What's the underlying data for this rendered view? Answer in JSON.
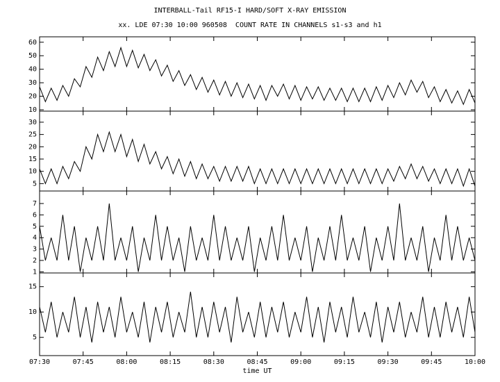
{
  "title": "INTERBALL-Tail RF15-I HARD/SOFT X-RAY EMISSION",
  "subtitle": "xx. LDE 07:30 10:00 960508  COUNT RATE IN CHANNELS s1-s3 and h1",
  "chart_data": [
    {
      "type": "line",
      "color": "#000000",
      "values": [
        27,
        16,
        26,
        17,
        28,
        20,
        33,
        27,
        42,
        34,
        49,
        39,
        53,
        42,
        56,
        42,
        54,
        41,
        51,
        39,
        47,
        35,
        43,
        31,
        39,
        28,
        36,
        25,
        34,
        23,
        32,
        21,
        31,
        20,
        30,
        19,
        29,
        18,
        28,
        17,
        28,
        20,
        29,
        18,
        28,
        17,
        27,
        18,
        27,
        17,
        26,
        17,
        26,
        16,
        26,
        16,
        26,
        16,
        27,
        17,
        28,
        19,
        30,
        21,
        32,
        23,
        31,
        19,
        27,
        16,
        25,
        15,
        24,
        14,
        25,
        15
      ],
      "ylim": [
        9,
        64
      ],
      "yticks": [
        10,
        20,
        30,
        40,
        50,
        60
      ]
    },
    {
      "type": "line",
      "color": "#000000",
      "values": [
        11,
        5,
        11,
        5,
        12,
        7,
        14,
        10,
        20,
        15,
        25,
        18,
        26,
        18,
        25,
        16,
        23,
        14,
        21,
        13,
        18,
        11,
        16,
        9,
        15,
        8,
        14,
        7,
        13,
        7,
        12,
        6,
        12,
        6,
        12,
        6,
        12,
        5,
        11,
        5,
        11,
        5,
        11,
        5,
        11,
        5,
        11,
        5,
        11,
        5,
        11,
        5,
        11,
        5,
        11,
        5,
        11,
        5,
        11,
        5,
        11,
        6,
        12,
        7,
        13,
        7,
        12,
        6,
        11,
        5,
        11,
        5,
        11,
        4,
        11,
        4
      ],
      "ylim": [
        2,
        34.5
      ],
      "yticks": [
        5,
        10,
        15,
        20,
        25,
        30
      ]
    },
    {
      "type": "line",
      "color": "#000000",
      "values": [
        5,
        2,
        4,
        2,
        6,
        2,
        5,
        1,
        4,
        2,
        5,
        2,
        7,
        2,
        4,
        2,
        5,
        1,
        4,
        2,
        6,
        2,
        5,
        2,
        4,
        1,
        5,
        2,
        4,
        2,
        6,
        2,
        5,
        2,
        4,
        2,
        5,
        1,
        4,
        2,
        5,
        2,
        6,
        2,
        4,
        2,
        5,
        1,
        4,
        2,
        5,
        2,
        6,
        2,
        4,
        2,
        5,
        1,
        4,
        2,
        5,
        2,
        7,
        2,
        4,
        2,
        5,
        1,
        4,
        2,
        6,
        2,
        5,
        2,
        4,
        2
      ],
      "ylim": [
        0.9,
        8.1
      ],
      "yticks": [
        1,
        2,
        3,
        4,
        5,
        6,
        7
      ]
    },
    {
      "type": "line",
      "color": "#000000",
      "values": [
        11,
        6,
        12,
        5,
        10,
        6,
        13,
        5,
        11,
        4,
        12,
        6,
        11,
        5,
        13,
        6,
        10,
        5,
        12,
        4,
        11,
        6,
        12,
        5,
        10,
        6,
        14,
        5,
        11,
        5,
        12,
        6,
        11,
        4,
        13,
        6,
        10,
        5,
        12,
        5,
        11,
        6,
        12,
        5,
        10,
        6,
        13,
        5,
        11,
        4,
        12,
        6,
        11,
        5,
        13,
        6,
        10,
        5,
        12,
        4,
        11,
        6,
        12,
        5,
        10,
        6,
        13,
        5,
        11,
        5,
        12,
        6,
        11,
        5,
        13,
        6
      ],
      "ylim": [
        1.4,
        17.7
      ],
      "yticks": [
        5,
        10,
        15
      ],
      "x": [
        "07:30",
        "07:32",
        "07:34",
        "07:36",
        "07:38",
        "07:40",
        "07:42",
        "07:44",
        "07:46",
        "07:48",
        "07:50",
        "07:52",
        "07:54",
        "07:56",
        "07:58",
        "08:00",
        "08:02",
        "08:04",
        "08:06",
        "08:08",
        "08:10",
        "08:12",
        "08:14",
        "08:16",
        "08:18",
        "08:20",
        "08:22",
        "08:24",
        "08:26",
        "08:28",
        "08:30",
        "08:32",
        "08:34",
        "08:36",
        "08:38",
        "08:40",
        "08:42",
        "08:44",
        "08:46",
        "08:48",
        "08:50",
        "08:52",
        "08:54",
        "08:56",
        "08:58",
        "09:00",
        "09:02",
        "09:04",
        "09:06",
        "09:08",
        "09:10",
        "09:12",
        "09:14",
        "09:16",
        "09:18",
        "09:20",
        "09:22",
        "09:24",
        "09:26",
        "09:28",
        "09:30",
        "09:32",
        "09:34",
        "09:36",
        "09:38",
        "09:40",
        "09:42",
        "09:44",
        "09:46",
        "09:48",
        "09:50",
        "09:52",
        "09:54",
        "09:56",
        "09:58",
        "10:00"
      ],
      "xlim": [
        "07:30",
        "10:00"
      ],
      "xticks": [
        "07:30",
        "07:45",
        "08:00",
        "08:15",
        "08:30",
        "08:45",
        "09:00",
        "09:15",
        "09:30",
        "09:45",
        "10:00"
      ],
      "xlabel": "time UT"
    }
  ]
}
